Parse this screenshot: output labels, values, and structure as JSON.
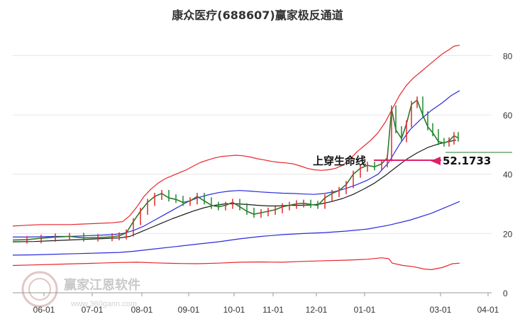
{
  "chart_data": {
    "type": "line",
    "title": "康众医疗(688607)赢家极反通道",
    "y_ticks": [
      0,
      20,
      40,
      60,
      80
    ],
    "ylim": [
      0,
      88
    ],
    "x_ticks": [
      "06-01",
      "07-01",
      "08-01",
      "09-01",
      "10-01",
      "11-01",
      "12-01",
      "01-01",
      "03-01",
      "04-01"
    ],
    "grid": "horizontal",
    "annotation": "上穿生命线",
    "last_price": "52.1733",
    "series": [
      {
        "key": "upper_red",
        "color": "#e8262b",
        "points": [
          [
            0,
            22.5
          ],
          [
            20,
            22.8
          ],
          [
            40,
            23.0
          ],
          [
            60,
            23.0
          ],
          [
            80,
            23.0
          ],
          [
            100,
            23.2
          ],
          [
            120,
            23.4
          ],
          [
            140,
            23.6
          ],
          [
            155,
            24.0
          ],
          [
            165,
            26
          ],
          [
            175,
            29
          ],
          [
            185,
            32.5
          ],
          [
            195,
            35.0
          ],
          [
            205,
            37.0
          ],
          [
            215,
            38.5
          ],
          [
            225,
            39.5
          ],
          [
            235,
            40.5
          ],
          [
            245,
            41.5
          ],
          [
            255,
            42.8
          ],
          [
            265,
            44.0
          ],
          [
            275,
            44.8
          ],
          [
            285,
            45.5
          ],
          [
            295,
            46.0
          ],
          [
            305,
            46.2
          ],
          [
            315,
            46.4
          ],
          [
            325,
            46.2
          ],
          [
            335,
            45.8
          ],
          [
            345,
            45.2
          ],
          [
            355,
            44.8
          ],
          [
            365,
            44.3
          ],
          [
            375,
            44.0
          ],
          [
            385,
            43.8
          ],
          [
            395,
            43.5
          ],
          [
            405,
            42.8
          ],
          [
            415,
            42.0
          ],
          [
            425,
            41.5
          ],
          [
            435,
            41.3
          ],
          [
            445,
            41.5
          ],
          [
            455,
            42.0
          ],
          [
            465,
            43.0
          ],
          [
            475,
            45.0
          ],
          [
            485,
            47.5
          ],
          [
            495,
            49.5
          ],
          [
            505,
            51.5
          ],
          [
            515,
            54.0
          ],
          [
            525,
            57.5
          ],
          [
            535,
            62.0
          ],
          [
            545,
            66.5
          ],
          [
            555,
            70.0
          ],
          [
            565,
            72.5
          ],
          [
            575,
            74.5
          ],
          [
            585,
            76.5
          ],
          [
            595,
            78.5
          ],
          [
            605,
            80.5
          ],
          [
            615,
            82.0
          ],
          [
            622,
            83.2
          ],
          [
            630,
            83.5
          ]
        ]
      },
      {
        "key": "blue_mid",
        "color": "#2b2bdc",
        "points": [
          [
            0,
            18.8
          ],
          [
            20,
            18.8
          ],
          [
            40,
            18.9
          ],
          [
            60,
            19.0
          ],
          [
            80,
            19.0
          ],
          [
            100,
            19.2
          ],
          [
            120,
            19.4
          ],
          [
            140,
            19.6
          ],
          [
            155,
            20.0
          ],
          [
            170,
            21.0
          ],
          [
            185,
            22.5
          ],
          [
            200,
            24.5
          ],
          [
            215,
            26.5
          ],
          [
            230,
            28.5
          ],
          [
            245,
            30.5
          ],
          [
            260,
            32.0
          ],
          [
            275,
            33.0
          ],
          [
            290,
            33.8
          ],
          [
            305,
            34.3
          ],
          [
            320,
            34.5
          ],
          [
            335,
            34.3
          ],
          [
            350,
            34.0
          ],
          [
            365,
            33.8
          ],
          [
            380,
            33.6
          ],
          [
            395,
            33.5
          ],
          [
            410,
            33.3
          ],
          [
            425,
            33.2
          ],
          [
            440,
            33.5
          ],
          [
            455,
            34.2
          ],
          [
            470,
            35.2
          ],
          [
            485,
            36.5
          ],
          [
            500,
            38.0
          ],
          [
            515,
            40.0
          ],
          [
            530,
            44.0
          ],
          [
            545,
            50.0
          ],
          [
            560,
            55.0
          ],
          [
            575,
            58.5
          ],
          [
            590,
            61.5
          ],
          [
            605,
            64.0
          ],
          [
            618,
            66.5
          ],
          [
            630,
            68.2
          ]
        ]
      },
      {
        "key": "life_black",
        "color": "#1a1a1a",
        "points": [
          [
            0,
            17.2
          ],
          [
            30,
            17.3
          ],
          [
            60,
            17.6
          ],
          [
            90,
            17.9
          ],
          [
            120,
            18.2
          ],
          [
            150,
            18.5
          ],
          [
            165,
            19.0
          ],
          [
            180,
            20.5
          ],
          [
            195,
            22.0
          ],
          [
            210,
            23.5
          ],
          [
            225,
            25.0
          ],
          [
            240,
            26.3
          ],
          [
            255,
            27.6
          ],
          [
            270,
            28.7
          ],
          [
            285,
            29.5
          ],
          [
            300,
            30.0
          ],
          [
            315,
            30.0
          ],
          [
            330,
            29.8
          ],
          [
            345,
            29.5
          ],
          [
            360,
            29.3
          ],
          [
            375,
            29.3
          ],
          [
            390,
            29.5
          ],
          [
            405,
            29.5
          ],
          [
            420,
            29.6
          ],
          [
            435,
            30.0
          ],
          [
            450,
            30.8
          ],
          [
            465,
            31.8
          ],
          [
            480,
            33.2
          ],
          [
            495,
            35.0
          ],
          [
            510,
            37.0
          ],
          [
            525,
            39.5
          ],
          [
            540,
            42.3
          ],
          [
            555,
            45.0
          ],
          [
            570,
            47.2
          ],
          [
            585,
            49.0
          ],
          [
            600,
            50.2
          ],
          [
            615,
            51.0
          ],
          [
            625,
            51.5
          ]
        ]
      },
      {
        "key": "mid_blue",
        "color": "#2b2bdc",
        "points": [
          [
            0,
            12.7
          ],
          [
            30,
            12.8
          ],
          [
            60,
            13.0
          ],
          [
            90,
            13.2
          ],
          [
            120,
            13.4
          ],
          [
            150,
            13.6
          ],
          [
            170,
            14.0
          ],
          [
            200,
            14.8
          ],
          [
            230,
            15.6
          ],
          [
            260,
            16.4
          ],
          [
            290,
            17.2
          ],
          [
            320,
            18.2
          ],
          [
            350,
            19.0
          ],
          [
            380,
            19.6
          ],
          [
            410,
            20.0
          ],
          [
            440,
            20.3
          ],
          [
            470,
            20.8
          ],
          [
            500,
            21.5
          ],
          [
            530,
            22.8
          ],
          [
            560,
            24.5
          ],
          [
            590,
            26.8
          ],
          [
            610,
            28.8
          ],
          [
            630,
            30.8
          ]
        ]
      },
      {
        "key": "lower_red",
        "color": "#e8262b",
        "points": [
          [
            0,
            9.2
          ],
          [
            30,
            9.4
          ],
          [
            60,
            9.6
          ],
          [
            90,
            9.8
          ],
          [
            120,
            10.0
          ],
          [
            150,
            10.2
          ],
          [
            175,
            10.3
          ],
          [
            200,
            10.1
          ],
          [
            230,
            9.9
          ],
          [
            260,
            9.8
          ],
          [
            290,
            10.0
          ],
          [
            320,
            10.3
          ],
          [
            350,
            10.4
          ],
          [
            380,
            10.3
          ],
          [
            410,
            10.6
          ],
          [
            440,
            10.8
          ],
          [
            470,
            11.0
          ],
          [
            500,
            11.3
          ],
          [
            520,
            11.8
          ],
          [
            530,
            11.5
          ],
          [
            535,
            10.0
          ],
          [
            550,
            9.2
          ],
          [
            565,
            8.8
          ],
          [
            580,
            8.0
          ],
          [
            590,
            7.8
          ],
          [
            605,
            8.5
          ],
          [
            620,
            9.8
          ],
          [
            630,
            10.0
          ]
        ]
      },
      {
        "key": "price_line",
        "color": "#2a7a2a",
        "points": [
          [
            0,
            17.8
          ],
          [
            20,
            17.9
          ],
          [
            40,
            18.4
          ],
          [
            60,
            18.8
          ],
          [
            80,
            19.0
          ],
          [
            100,
            18.5
          ],
          [
            120,
            18.6
          ],
          [
            140,
            18.9
          ],
          [
            150,
            19.2
          ],
          [
            160,
            20.2
          ],
          [
            170,
            24.0
          ],
          [
            180,
            27.5
          ],
          [
            190,
            30.5
          ],
          [
            200,
            32.5
          ],
          [
            210,
            33.5
          ],
          [
            220,
            32.0
          ],
          [
            230,
            31.5
          ],
          [
            240,
            30.5
          ],
          [
            250,
            31.0
          ],
          [
            260,
            32.5
          ],
          [
            270,
            31.0
          ],
          [
            280,
            29.5
          ],
          [
            290,
            29.0
          ],
          [
            300,
            29.5
          ],
          [
            310,
            30.5
          ],
          [
            320,
            29.0
          ],
          [
            330,
            27.5
          ],
          [
            340,
            26.5
          ],
          [
            350,
            27.0
          ],
          [
            360,
            27.5
          ],
          [
            370,
            28.0
          ],
          [
            380,
            29.0
          ],
          [
            390,
            29.5
          ],
          [
            400,
            30.0
          ],
          [
            410,
            30.2
          ],
          [
            420,
            29.8
          ],
          [
            430,
            29.5
          ],
          [
            440,
            32.0
          ],
          [
            450,
            33.5
          ],
          [
            460,
            34.5
          ],
          [
            470,
            36.5
          ],
          [
            480,
            40.0
          ],
          [
            490,
            42.0
          ],
          [
            500,
            43.0
          ],
          [
            510,
            42.5
          ],
          [
            520,
            43.5
          ],
          [
            528,
            45.5
          ],
          [
            534,
            62.0
          ],
          [
            540,
            55.0
          ],
          [
            548,
            52.0
          ],
          [
            555,
            57.0
          ],
          [
            562,
            63.5
          ],
          [
            570,
            65.0
          ],
          [
            578,
            60.0
          ],
          [
            585,
            56.0
          ],
          [
            592,
            54.0
          ],
          [
            600,
            51.0
          ],
          [
            608,
            50.5
          ],
          [
            615,
            51.2
          ],
          [
            622,
            53.0
          ],
          [
            628,
            52.2
          ]
        ]
      }
    ]
  },
  "watermark": {
    "brand": "赢家江恩软件",
    "url": "www.360gann.com"
  }
}
